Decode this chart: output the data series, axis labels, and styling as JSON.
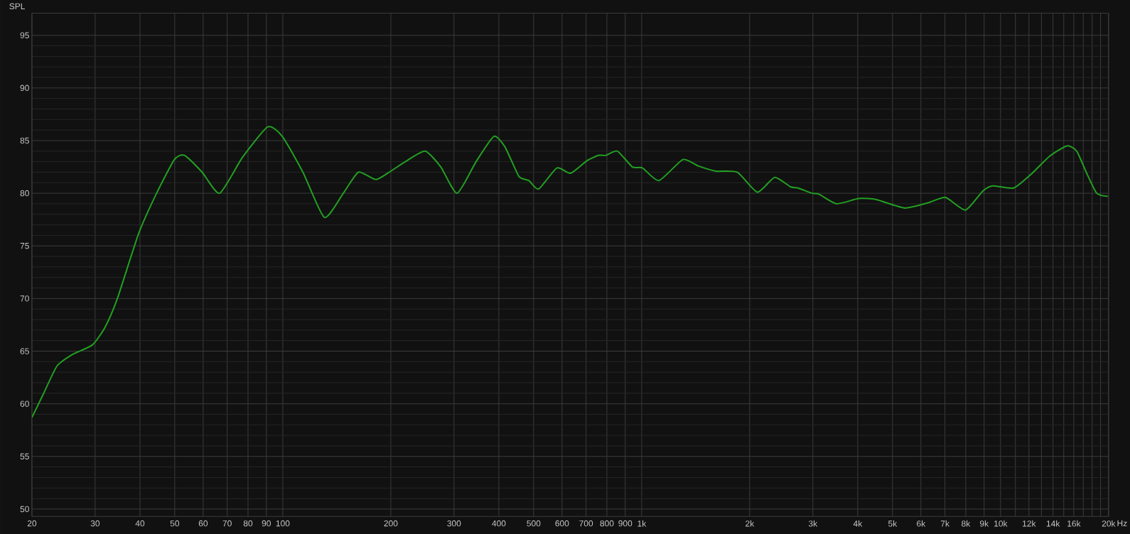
{
  "chart_data": {
    "type": "line",
    "ylabel": "SPL",
    "log": "x",
    "grid": true,
    "xlim": [
      20,
      20000
    ],
    "ylim": [
      49.3,
      97.1
    ],
    "xticks": [
      20,
      30,
      40,
      50,
      60,
      70,
      80,
      90,
      100,
      200,
      300,
      400,
      500,
      600,
      700,
      800,
      900,
      {
        "value": 1000,
        "label": "1k"
      },
      {
        "value": 2000,
        "label": "2k"
      },
      {
        "value": 3000,
        "label": "3k"
      },
      {
        "value": 4000,
        "label": "4k"
      },
      {
        "value": 5000,
        "label": "5k"
      },
      {
        "value": 6000,
        "label": "6k"
      },
      {
        "value": 7000,
        "label": "7k"
      },
      {
        "value": 8000,
        "label": "8k"
      },
      {
        "value": 9000,
        "label": "9k"
      },
      {
        "value": 10000,
        "label": "10k"
      },
      {
        "value": 11000,
        "label": null
      },
      {
        "value": 12000,
        "label": "12k"
      },
      {
        "value": 13000,
        "label": null
      },
      {
        "value": 14000,
        "label": "14k"
      },
      {
        "value": 15000,
        "label": null
      },
      {
        "value": 16000,
        "label": "16k"
      },
      {
        "value": 17000,
        "label": null
      },
      {
        "value": 18000,
        "label": null
      },
      {
        "value": 19000,
        "label": null
      },
      {
        "value": 20000,
        "label": "20k"
      }
    ],
    "xlabel": "Hz",
    "yticks": [
      50,
      55,
      60,
      65,
      70,
      75,
      80,
      85,
      90,
      95
    ],
    "x": [
      20,
      21.5,
      23.5,
      26,
      29.5,
      32,
      34.6,
      39.7,
      44.5,
      49.9,
      53.2,
      59.6,
      66.7,
      77.2,
      90.8,
      99.7,
      113.8,
      130.6,
      147.5,
      162.5,
      181.9,
      200,
      219.6,
      249.2,
      275.6,
      306,
      345.7,
      387.3,
      416,
      455,
      485.4,
      516.3,
      580.3,
      633.9,
      704.6,
      758,
      795.7,
      855.6,
      942,
      1006,
      1117,
      1303,
      1436,
      1609,
      1846,
      2101,
      2346,
      2602,
      2729,
      2977,
      3124,
      3492,
      4029,
      4504,
      5407,
      6288,
      7026,
      7981,
      8918,
      9507,
      10880,
      12250,
      13680,
      15300,
      16300,
      17380,
      18540,
      19900
    ],
    "series": [
      {
        "color": "#22a022",
        "values": [
          58.7,
          60.9,
          63.6,
          64.7,
          65.6,
          67.3,
          70.0,
          76.2,
          80.0,
          83.2,
          83.6,
          82.0,
          80.0,
          83.4,
          86.3,
          85.4,
          82.0,
          77.7,
          80.0,
          82.0,
          81.3,
          82.1,
          83.0,
          84.0,
          82.5,
          80.0,
          83.0,
          85.4,
          84.4,
          81.6,
          81.2,
          80.4,
          82.4,
          81.9,
          83.1,
          83.6,
          83.6,
          84.0,
          82.5,
          82.4,
          81.2,
          83.2,
          82.6,
          82.1,
          82.0,
          80.1,
          81.5,
          80.6,
          80.5,
          80.0,
          79.9,
          79.0,
          79.5,
          79.4,
          78.6,
          79.1,
          79.6,
          78.4,
          80.2,
          80.7,
          80.5,
          81.9,
          83.5,
          84.5,
          84.0,
          81.9,
          80.0,
          79.7
        ]
      }
    ]
  }
}
